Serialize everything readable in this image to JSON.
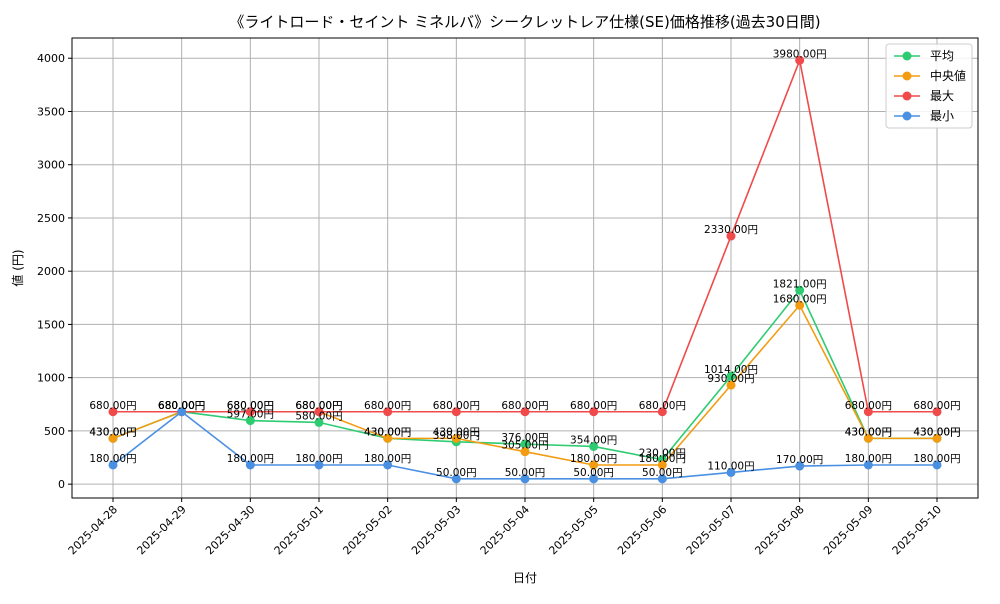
{
  "chart_data": {
    "type": "line",
    "title": "《ライトロード・セイント ミネルバ》シークレットレア仕様(SE)価格推移(過去30日間)",
    "xlabel": "日付",
    "ylabel": "値 (円)",
    "ylim": [
      -130,
      4190
    ],
    "yticks": [
      0,
      500,
      1000,
      1500,
      2000,
      2500,
      3000,
      3500,
      4000
    ],
    "grid": true,
    "legend_position": "top-right",
    "label_suffix": "円",
    "categories": [
      "2025-04-28",
      "2025-04-29",
      "2025-04-30",
      "2025-05-01",
      "2025-05-02",
      "2025-05-03",
      "2025-05-04",
      "2025-05-05",
      "2025-05-06",
      "2025-05-07",
      "2025-05-08",
      "2025-05-09",
      "2025-05-10"
    ],
    "series": [
      {
        "name": "平均",
        "color": "#2ecc71",
        "values": [
          430,
          680,
          597,
          580,
          430,
          398,
          376,
          354,
          230,
          1014,
          1821,
          430,
          430
        ]
      },
      {
        "name": "中央値",
        "color": "#f39c12",
        "values": [
          430,
          680,
          680,
          680,
          430,
          430,
          305,
          180,
          180,
          930,
          1680,
          430,
          430
        ]
      },
      {
        "name": "最大",
        "color": "#f04a4a",
        "values": [
          680,
          680,
          680,
          680,
          680,
          680,
          680,
          680,
          680,
          2330,
          3980,
          680,
          680
        ]
      },
      {
        "name": "最小",
        "color": "#4a90e2",
        "values": [
          180,
          680,
          180,
          180,
          180,
          50,
          50,
          50,
          50,
          110,
          170,
          180,
          180
        ]
      }
    ]
  }
}
